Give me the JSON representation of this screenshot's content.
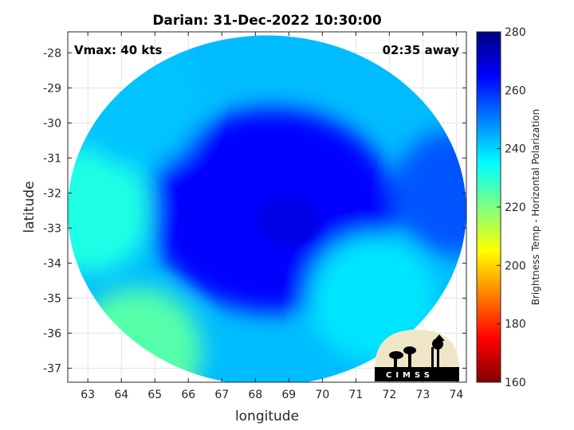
{
  "chart_data": {
    "type": "heatmap",
    "title": "Darian: 31-Dec-2022 10:30:00",
    "xlabel": "longitude",
    "ylabel": "latitude",
    "xlim": [
      62.4,
      74.3
    ],
    "ylim": [
      -37.4,
      -27.4
    ],
    "xticks": [
      63,
      64,
      65,
      66,
      67,
      68,
      69,
      70,
      71,
      72,
      73,
      74
    ],
    "yticks": [
      -28,
      -29,
      -30,
      -31,
      -32,
      -33,
      -34,
      -35,
      -36,
      -37
    ],
    "grid": true,
    "annotation_left": "Vmax: 40 kts",
    "annotation_right": "02:35 away",
    "colorbar": {
      "label": "Brightness Temp - Horizontal Polarization",
      "min": 160,
      "max": 280,
      "ticks": [
        160,
        180,
        200,
        220,
        240,
        260,
        280
      ],
      "colormap": "jet"
    },
    "swath": {
      "center_lon": 68.35,
      "center_lat": -32.5,
      "radius_lon": 5.95,
      "radius_lat": 5.0
    },
    "storm_center": {
      "lon": 69.0,
      "lat": -32.8,
      "temp": 268
    },
    "field_regions": [
      {
        "region": "storm core",
        "lon": 68.5,
        "lat": -32.5,
        "temp": 265
      },
      {
        "region": "western edge",
        "lon": 63.0,
        "lat": -32.5,
        "temp": 232
      },
      {
        "region": "southwest edge",
        "lon": 64.5,
        "lat": -36.5,
        "temp": 225
      },
      {
        "region": "northwest edge",
        "lon": 64.5,
        "lat": -29.5,
        "temp": 242
      },
      {
        "region": "southeast band",
        "lon": 71.5,
        "lat": -35.0,
        "temp": 238
      },
      {
        "region": "eastern edge",
        "lon": 74.0,
        "lat": -32.0,
        "temp": 255
      }
    ],
    "logo_text": "CIMSS"
  }
}
